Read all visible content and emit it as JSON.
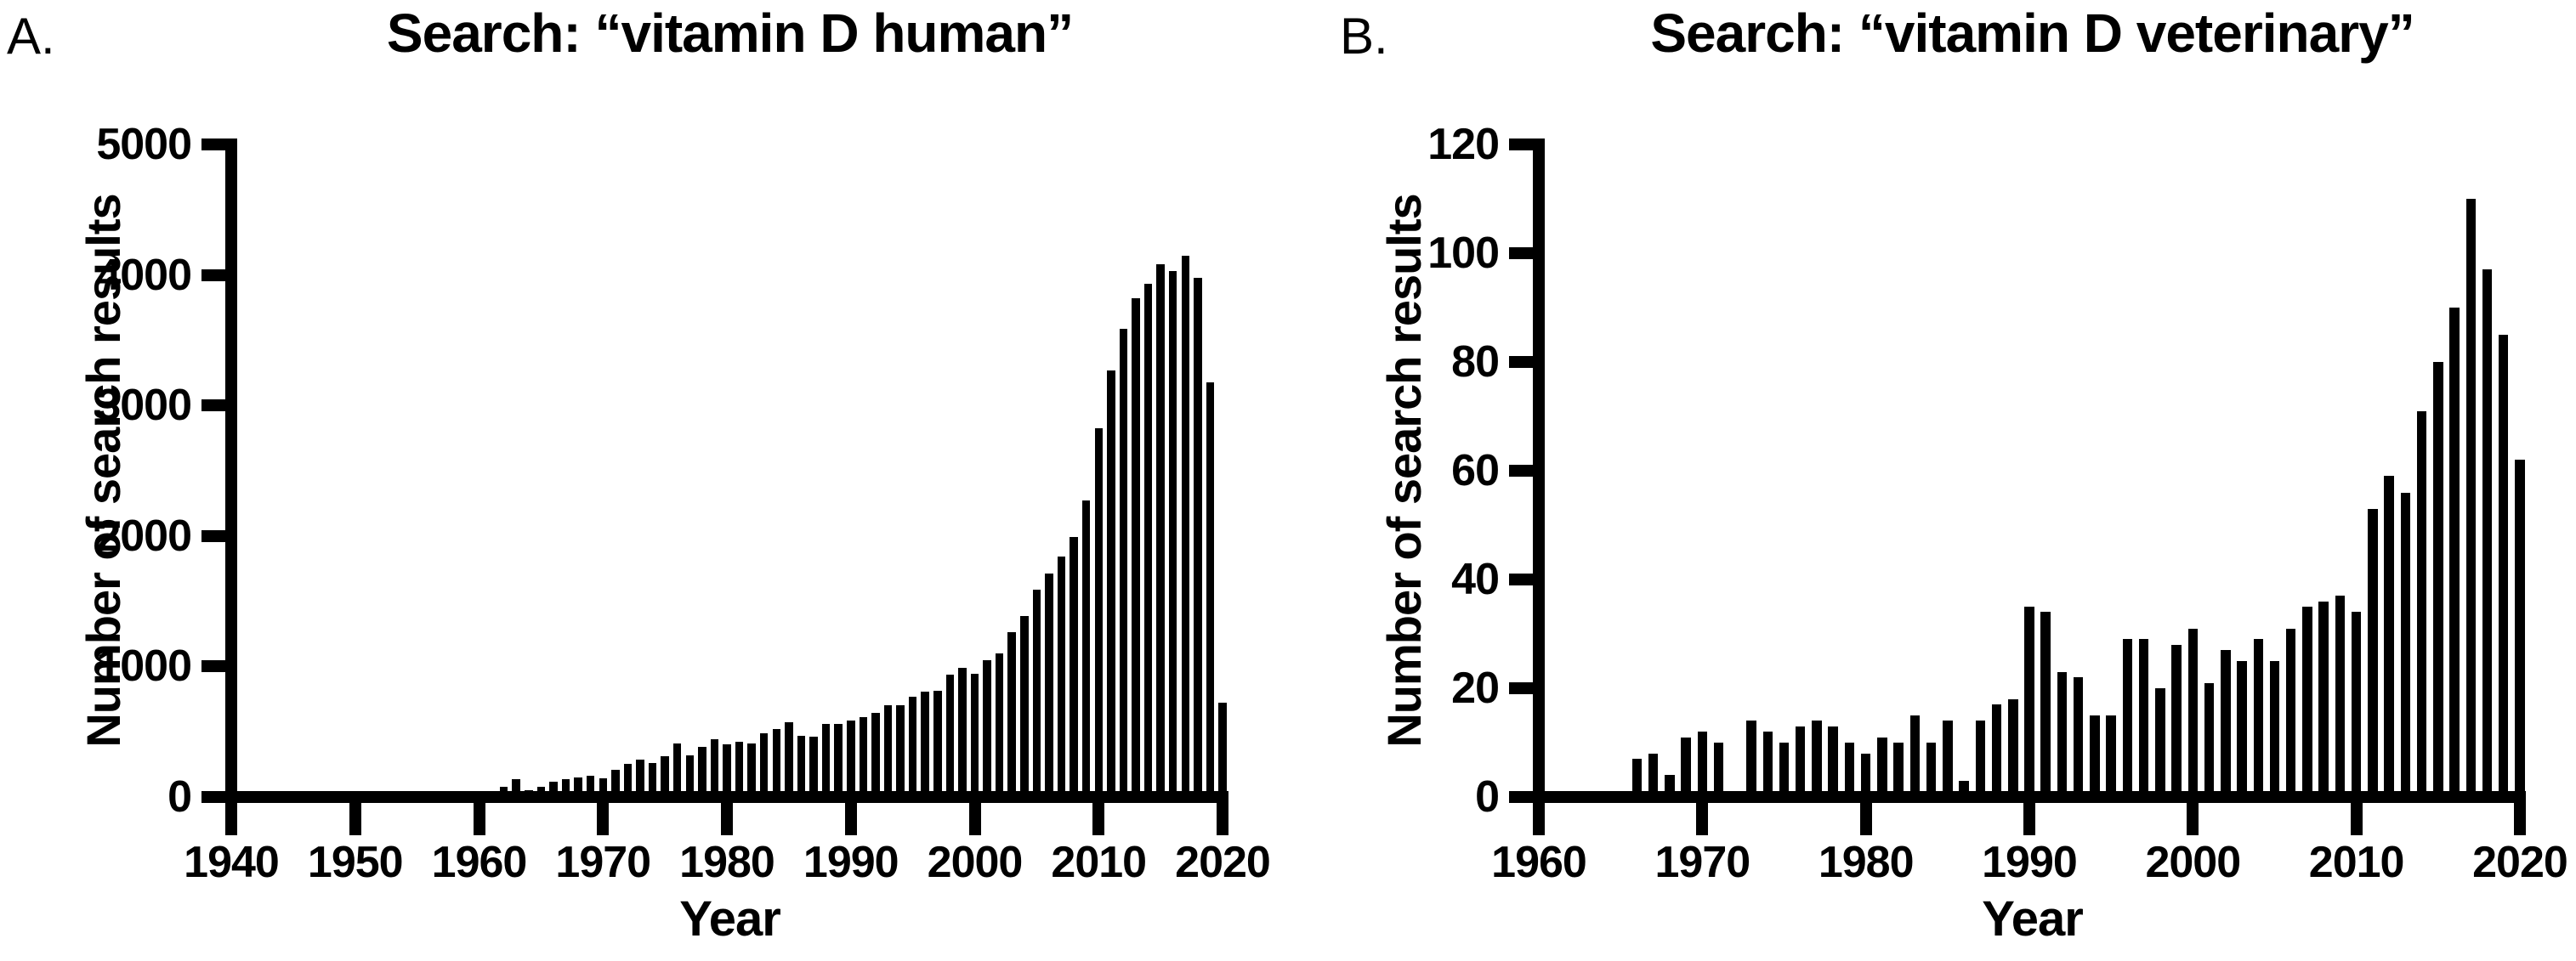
{
  "figure": {
    "background_color": "#ffffff",
    "ink_color": "#000000"
  },
  "chart_data": [
    {
      "type": "bar",
      "panel_label": "A.",
      "title": "Search: “vitamin D human”",
      "xlabel": "Year",
      "ylabel": "Number of search results",
      "ylim": [
        0,
        5000
      ],
      "xlim": [
        1940,
        2020
      ],
      "y_ticks": [
        0,
        1000,
        2000,
        3000,
        4000,
        5000
      ],
      "x_ticks": [
        1940,
        1950,
        1960,
        1970,
        1980,
        1990,
        2000,
        2010,
        2020
      ],
      "bar_color": "#000000",
      "grid": false,
      "legend": false,
      "years": [
        1947,
        1948,
        1949,
        1950,
        1951,
        1952,
        1953,
        1954,
        1955,
        1956,
        1957,
        1958,
        1959,
        1960,
        1961,
        1962,
        1963,
        1964,
        1965,
        1966,
        1967,
        1968,
        1969,
        1970,
        1971,
        1972,
        1973,
        1974,
        1975,
        1976,
        1977,
        1978,
        1979,
        1980,
        1981,
        1982,
        1983,
        1984,
        1985,
        1986,
        1987,
        1988,
        1989,
        1990,
        1991,
        1992,
        1993,
        1994,
        1995,
        1996,
        1997,
        1998,
        1999,
        2000,
        2001,
        2002,
        2003,
        2004,
        2005,
        2006,
        2007,
        2008,
        2009,
        2010,
        2011,
        2012,
        2013,
        2014,
        2015,
        2016,
        2017,
        2018,
        2019,
        2020
      ],
      "values": [
        20,
        0,
        35,
        45,
        0,
        0,
        25,
        25,
        0,
        18,
        30,
        0,
        0,
        0,
        15,
        80,
        135,
        55,
        80,
        115,
        135,
        150,
        165,
        140,
        210,
        255,
        285,
        260,
        310,
        410,
        320,
        385,
        445,
        405,
        420,
        410,
        490,
        520,
        575,
        470,
        460,
        560,
        560,
        585,
        615,
        645,
        705,
        705,
        770,
        805,
        815,
        940,
        990,
        945,
        1050,
        1100,
        1265,
        1385,
        1590,
        1715,
        1845,
        1990,
        2270,
        2825,
        3265,
        3590,
        3820,
        3930,
        4080,
        4030,
        4150,
        3980,
        3180,
        725
      ]
    },
    {
      "type": "bar",
      "panel_label": "B.",
      "title": "Search: “vitamin D veterinary”",
      "xlabel": "Year",
      "ylabel": "Number of search results",
      "ylim": [
        0,
        120
      ],
      "xlim": [
        1960,
        2020
      ],
      "y_ticks": [
        0,
        20,
        40,
        60,
        80,
        100,
        120
      ],
      "x_ticks": [
        1960,
        1970,
        1980,
        1990,
        2000,
        2010,
        2020
      ],
      "bar_color": "#000000",
      "grid": false,
      "legend": false,
      "years": [
        1966,
        1967,
        1968,
        1969,
        1970,
        1971,
        1972,
        1973,
        1974,
        1975,
        1976,
        1977,
        1978,
        1979,
        1980,
        1981,
        1982,
        1983,
        1984,
        1985,
        1986,
        1987,
        1988,
        1989,
        1990,
        1991,
        1992,
        1993,
        1994,
        1995,
        1996,
        1997,
        1998,
        1999,
        2000,
        2001,
        2002,
        2003,
        2004,
        2005,
        2006,
        2007,
        2008,
        2009,
        2010,
        2011,
        2012,
        2013,
        2014,
        2015,
        2016,
        2017,
        2018,
        2019,
        2020
      ],
      "values": [
        7,
        8,
        4,
        11,
        12,
        10,
        0,
        14,
        12,
        10,
        13,
        14,
        13,
        10,
        8,
        11,
        10,
        15,
        10,
        14,
        3,
        14,
        17,
        18,
        35,
        34,
        23,
        22,
        15,
        15,
        29,
        29,
        20,
        28,
        31,
        21,
        27,
        25,
        29,
        25,
        31,
        35,
        36,
        37,
        34,
        53,
        59,
        56,
        71,
        80,
        90,
        110,
        97,
        85,
        62
      ]
    }
  ]
}
